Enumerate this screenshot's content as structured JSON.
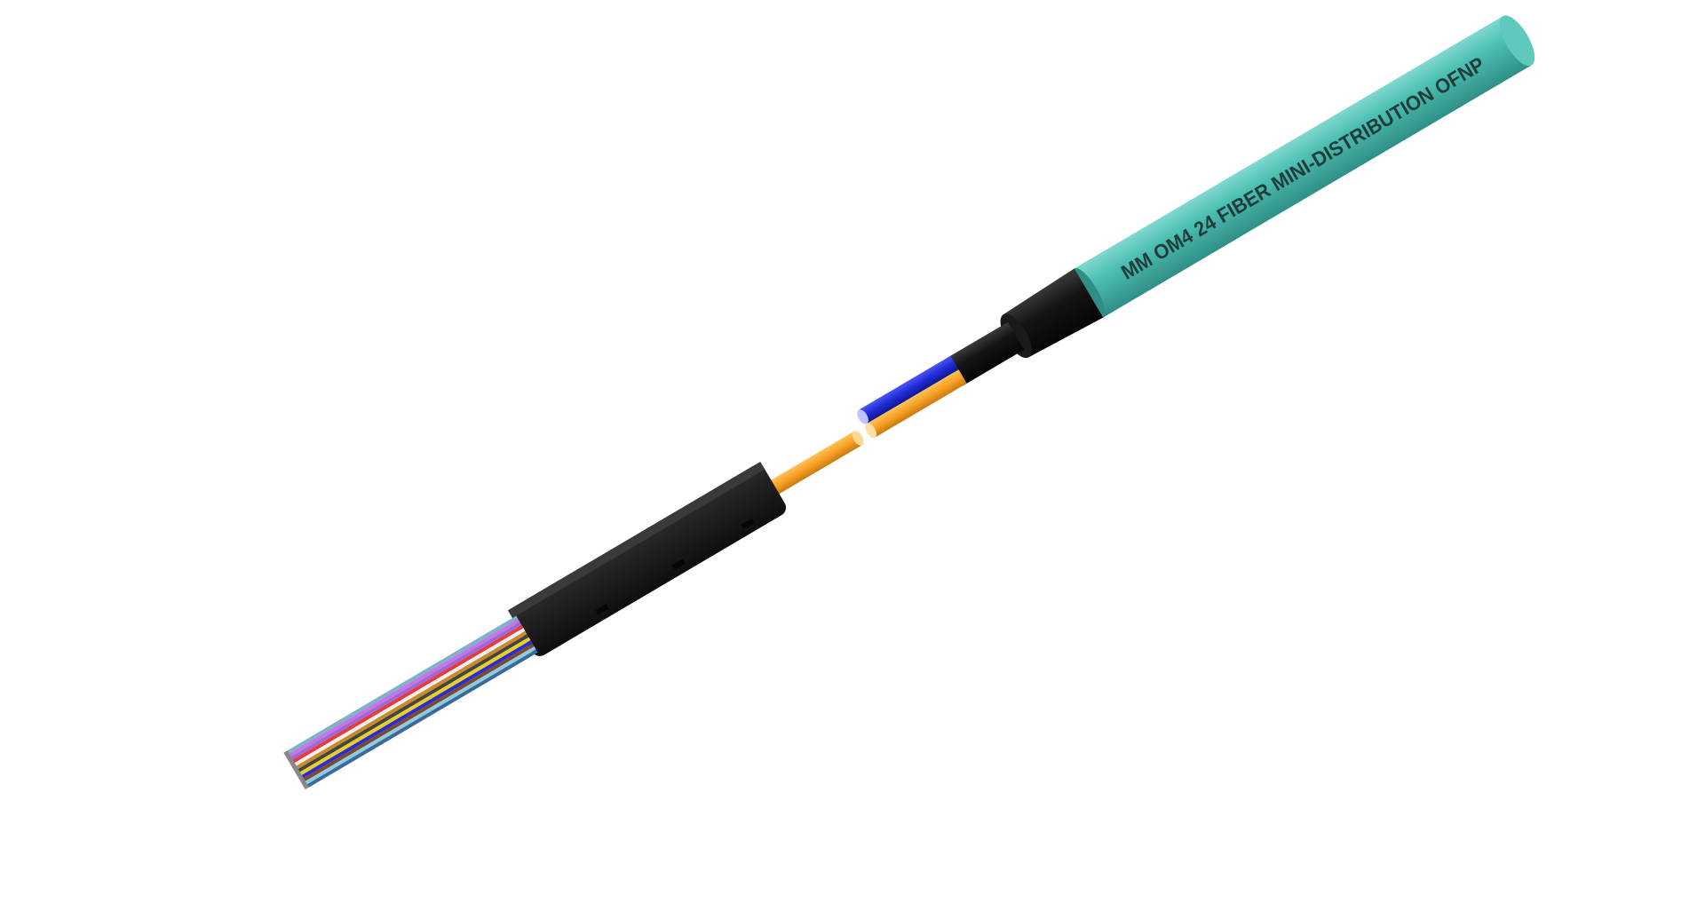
{
  "cable": {
    "jacket_print": "MM OM4 24 FIBER MINI-DISTRIBUTION OFNP",
    "colors": {
      "outer_jacket": "#4fc0b4",
      "outer_jacket_shadow": "#2f8f86",
      "inner_jacket": "#111111",
      "subunit_a": "#1f2bd6",
      "subunit_b": "#f7a022",
      "breakout_body": "#1c1c1c"
    },
    "fiber_colors": [
      "#7fb2c6",
      "#c675e8",
      "#9c6ad6",
      "#e83a3a",
      "#f0f0f0",
      "#c98a2a",
      "#444444",
      "#e6d020",
      "#2b2bd8",
      "#7a4a2a",
      "#8ecae0",
      "#3a6a9a"
    ]
  }
}
